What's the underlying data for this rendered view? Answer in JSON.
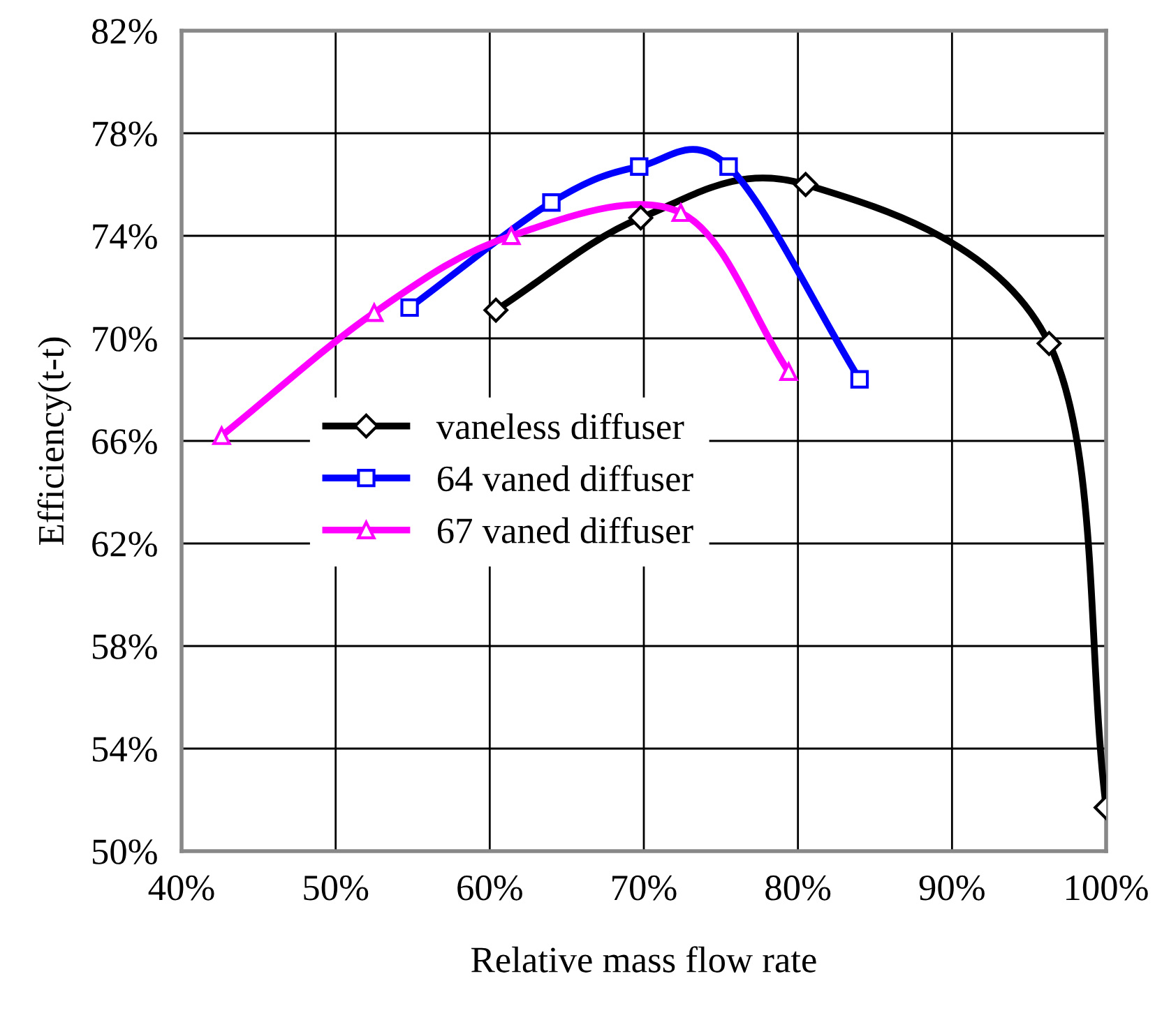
{
  "chart_data": {
    "type": "line",
    "xlabel": "Relative mass flow rate",
    "ylabel": "Efficiency(t-t)",
    "xlim": [
      40,
      100
    ],
    "ylim": [
      50,
      82
    ],
    "xticks": [
      {
        "value": 40,
        "label": "40%"
      },
      {
        "value": 50,
        "label": "50%"
      },
      {
        "value": 60,
        "label": "60%"
      },
      {
        "value": 70,
        "label": "70%"
      },
      {
        "value": 80,
        "label": "80%"
      },
      {
        "value": 90,
        "label": "90%"
      },
      {
        "value": 100,
        "label": "100%"
      }
    ],
    "yticks": [
      {
        "value": 50,
        "label": "50%"
      },
      {
        "value": 54,
        "label": "54%"
      },
      {
        "value": 58,
        "label": "58%"
      },
      {
        "value": 62,
        "label": "62%"
      },
      {
        "value": 66,
        "label": "66%"
      },
      {
        "value": 70,
        "label": "70%"
      },
      {
        "value": 74,
        "label": "74%"
      },
      {
        "value": 78,
        "label": "78%"
      },
      {
        "value": 82,
        "label": "82%"
      }
    ],
    "grid": true,
    "legend": "center left",
    "line_style": "solid",
    "series": [
      {
        "name": "vaneless diffuser",
        "color": "#000000",
        "marker": "diamond",
        "x": [
          60.4,
          69.8,
          80.5,
          96.3,
          100
        ],
        "values": [
          71.1,
          74.7,
          76.0,
          69.8,
          51.7
        ]
      },
      {
        "name": "64 vaned diffuser",
        "color": "#0000ff",
        "marker": "square",
        "x": [
          54.8,
          64.0,
          69.7,
          75.5,
          84.0
        ],
        "values": [
          71.2,
          75.3,
          76.7,
          76.7,
          68.4
        ]
      },
      {
        "name": "67 vaned diffuser",
        "color": "#ff00ff",
        "marker": "triangle",
        "x": [
          42.6,
          52.5,
          61.4,
          72.4,
          79.4
        ],
        "values": [
          66.2,
          71.0,
          74.0,
          74.9,
          68.7
        ]
      }
    ]
  }
}
